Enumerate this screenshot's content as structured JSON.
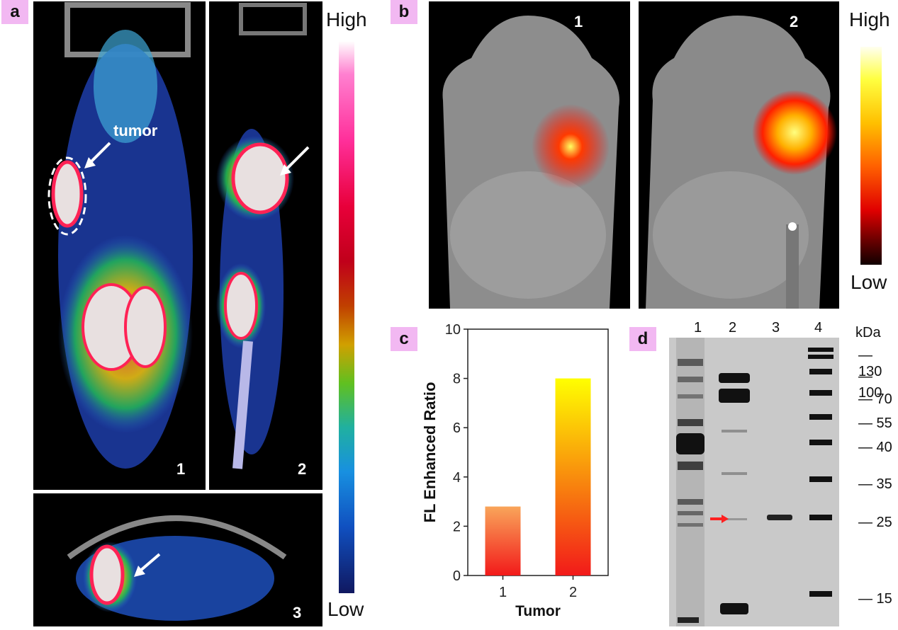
{
  "panel_a": {
    "label": "a",
    "tumor_label": "tumor",
    "view_numbers": [
      "1",
      "2",
      "3"
    ],
    "colorbar": {
      "high": "High",
      "low": "Low"
    }
  },
  "panel_b": {
    "label": "b",
    "view_numbers": [
      "1",
      "2"
    ],
    "colorbar": {
      "high": "High",
      "low": "Low"
    }
  },
  "panel_c": {
    "label": "c"
  },
  "panel_d": {
    "label": "d",
    "lanes": [
      "1",
      "2",
      "3",
      "4"
    ],
    "unit": "kDa",
    "markers": [
      "130",
      "100",
      "70",
      "55",
      "40",
      "35",
      "25",
      "15"
    ]
  },
  "chart_data": {
    "type": "bar",
    "categories": [
      "1",
      "2"
    ],
    "values": [
      2.8,
      8.0
    ],
    "xlabel": "Tumor",
    "ylabel": "FL Enhanced Ratio",
    "ylim": [
      0,
      10
    ],
    "yticks": [
      "0",
      "2",
      "4",
      "6",
      "8",
      "10"
    ],
    "grid": false,
    "colors": {
      "bar1_top": "#f9a55a",
      "bar1_bottom": "#f21a1a",
      "bar2_top": "#ffff00",
      "bar2_bottom": "#f21a1a"
    }
  }
}
